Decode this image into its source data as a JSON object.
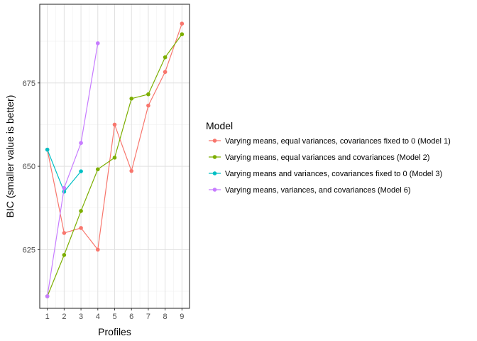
{
  "chart_data": {
    "type": "line",
    "title": "",
    "xlabel": "Profiles",
    "ylabel": "BIC (smaller value is better)",
    "x": [
      1,
      2,
      3,
      4,
      5,
      6,
      7,
      8,
      9
    ],
    "xticks": [
      "1",
      "2",
      "3",
      "4",
      "5",
      "6",
      "7",
      "8",
      "9"
    ],
    "yticks": [
      625,
      650,
      675
    ],
    "ytick_labels": [
      "625",
      "650",
      "675"
    ],
    "xlim": [
      0.55,
      9.45
    ],
    "ylim": [
      607.4,
      698.6
    ],
    "grid": true,
    "legend": {
      "title": "Model",
      "placement": "right"
    },
    "series": [
      {
        "name": "Varying means, equal variances, covariances fixed to 0 (Model 1)",
        "color": "#F8766D",
        "x": [
          1,
          2,
          3,
          4,
          5,
          6,
          7,
          8,
          9
        ],
        "values": [
          655.0,
          630.0,
          631.5,
          625.0,
          662.5,
          648.6,
          668.2,
          678.3,
          692.8
        ]
      },
      {
        "name": "Varying means, equal variances and covariances (Model 2)",
        "color": "#7CAE00",
        "x": [
          1,
          2,
          3,
          4,
          5,
          6,
          7,
          8,
          9
        ],
        "values": [
          611.0,
          623.4,
          636.6,
          649.1,
          652.6,
          670.3,
          671.6,
          682.7,
          689.6
        ]
      },
      {
        "name": "Varying means and variances, covariances fixed to 0 (Model 3)",
        "color": "#00BFC4",
        "x": [
          1,
          2,
          3
        ],
        "values": [
          655.0,
          642.4,
          648.5
        ]
      },
      {
        "name": "Varying means, variances, and covariances (Model 6)",
        "color": "#C77CFF",
        "x": [
          1,
          2,
          3,
          4
        ],
        "values": [
          611.0,
          643.5,
          657.0,
          686.9
        ]
      }
    ]
  }
}
